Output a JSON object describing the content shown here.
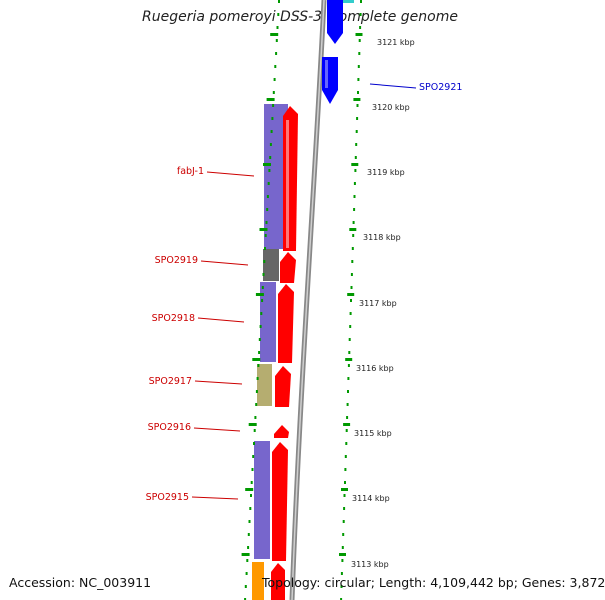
{
  "title": "Ruegeria pomeroyi DSS-3, complete genome",
  "footer": {
    "accession": "Accession: NC_003911",
    "topology": "Topology: circular; Length: 4,109,442 bp; Genes: 3,872"
  },
  "colors": {
    "reverse_label": "#cc0000",
    "forward_label": "#0000cc",
    "reverse_cds": "#ff0000",
    "forward_cds": "#0000ff",
    "cog_purple": "#7766cc",
    "cog_gray": "#666666",
    "cog_khaki": "#b5ad70",
    "cog_orange": "#ff9900",
    "tick_green": "#009900",
    "backbone": "#888888"
  },
  "kbp_ticks": [
    "3121 kbp",
    "3120 kbp",
    "3119 kbp",
    "3118 kbp",
    "3117 kbp",
    "3116 kbp",
    "3115 kbp",
    "3114 kbp",
    "3113 kbp"
  ],
  "genes": [
    {
      "label": "SPO2921",
      "strand": "forward"
    },
    {
      "label": "fabJ-1",
      "strand": "reverse"
    },
    {
      "label": "SPO2919",
      "strand": "reverse"
    },
    {
      "label": "SPO2918",
      "strand": "reverse"
    },
    {
      "label": "SPO2917",
      "strand": "reverse"
    },
    {
      "label": "SPO2916",
      "strand": "reverse"
    },
    {
      "label": "SPO2915",
      "strand": "reverse"
    }
  ]
}
